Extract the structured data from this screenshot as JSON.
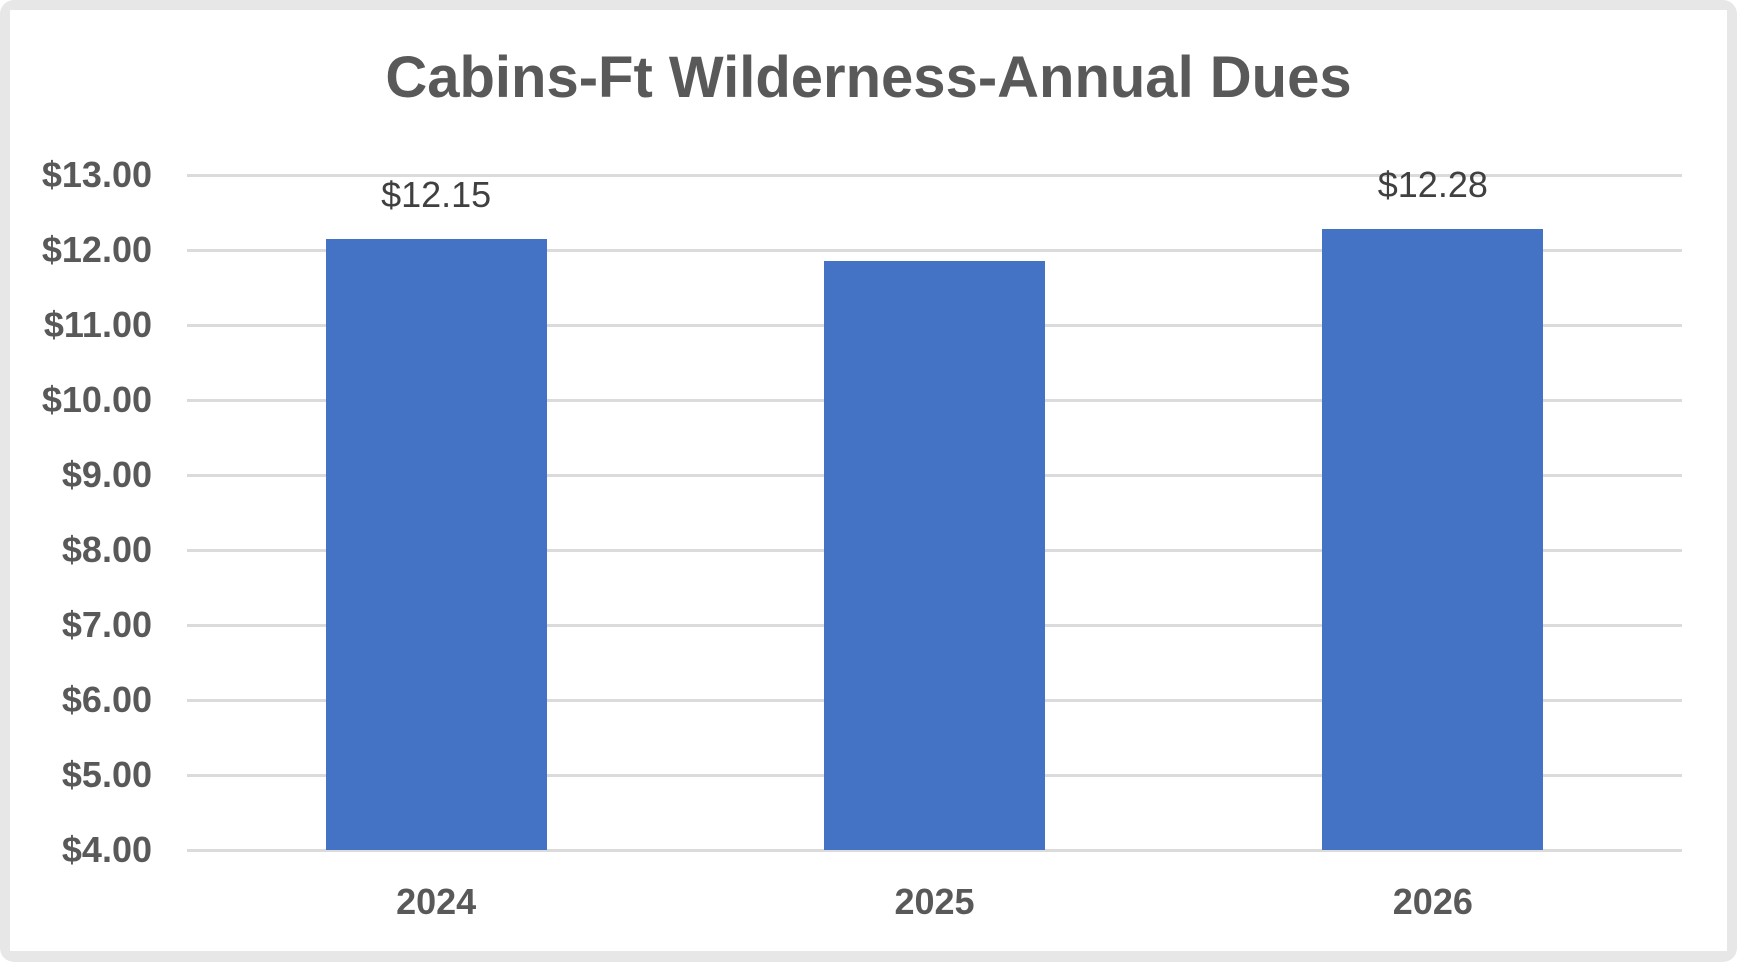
{
  "title": "Cabins-Ft Wilderness-Annual Dues",
  "chart_data": {
    "type": "bar",
    "title": "Cabins-Ft Wilderness-Annual Dues",
    "categories": [
      "2024",
      "2025",
      "2026"
    ],
    "values": [
      12.15,
      11.86,
      12.28
    ],
    "data_labels": [
      "$12.15",
      "",
      "$12.28"
    ],
    "y_ticks": [
      "$4.00",
      "$5.00",
      "$6.00",
      "$7.00",
      "$8.00",
      "$9.00",
      "$10.00",
      "$11.00",
      "$12.00",
      "$13.00"
    ],
    "ylim": [
      4,
      13
    ],
    "y_step": 1,
    "grid": true,
    "legend": "none"
  },
  "style": {
    "bar_color": "#4472C4",
    "gridline_color": "#DBDBDB",
    "title_color": "#595959",
    "axis_label_color": "#595959",
    "data_label_color": "#404040",
    "frame_bg": "#E7E7E7",
    "panel_bg": "#FFFFFF"
  }
}
